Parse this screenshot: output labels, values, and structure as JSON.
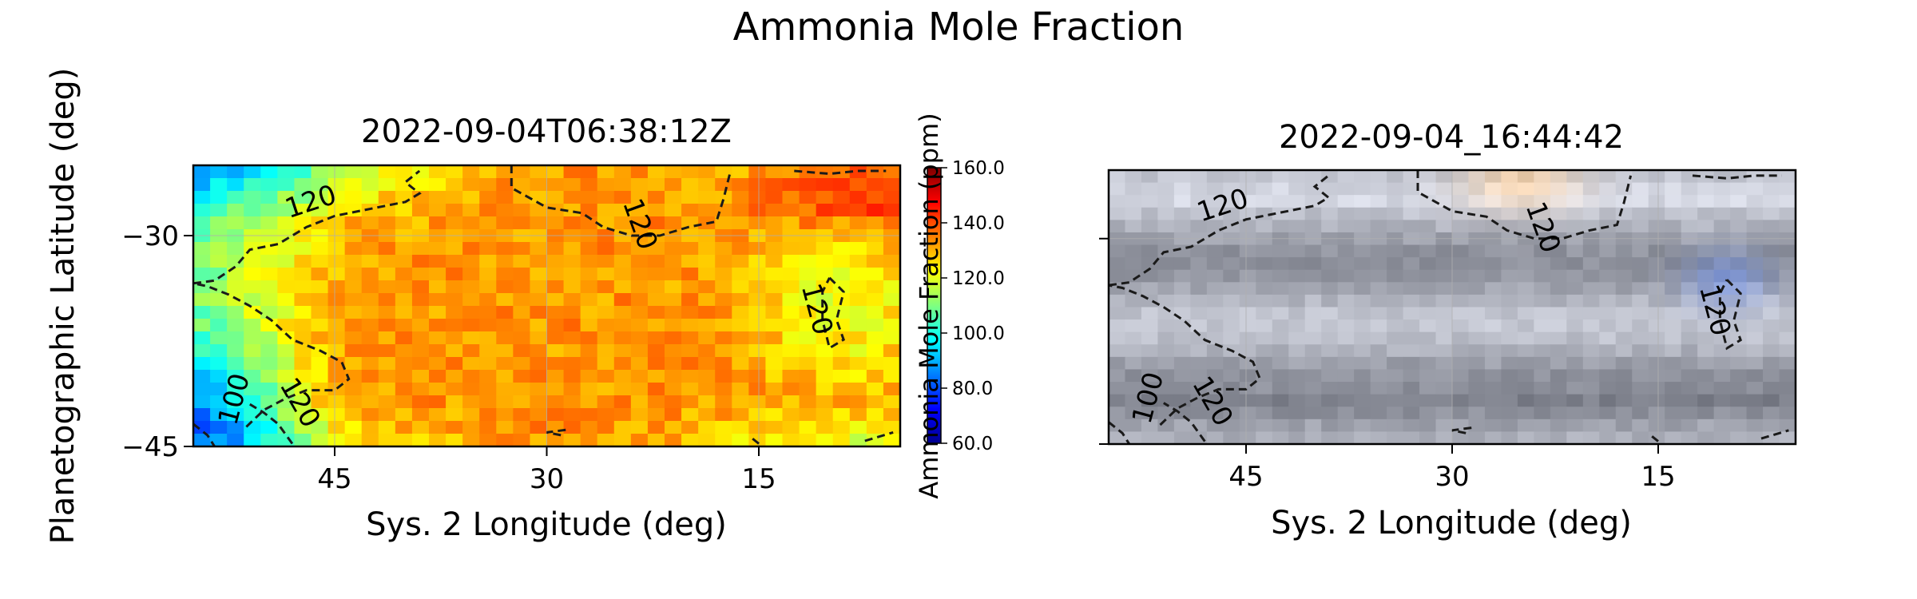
{
  "figure": {
    "suptitle": "Ammonia Mole Fraction"
  },
  "chart_data": [
    {
      "type": "heatmap",
      "title": "2022-09-04T06:38:12Z",
      "xlabel": "Sys. 2 Longitude (deg)",
      "ylabel": "Planetographic Latitude (deg)",
      "xlim": [
        55,
        5
      ],
      "ylim": [
        -45,
        -25
      ],
      "xticks": [
        "45",
        "30",
        "15"
      ],
      "xtick_values": [
        45,
        30,
        15
      ],
      "yticks": [
        "-30",
        "-45"
      ],
      "ytick_values": [
        -30,
        -45
      ],
      "colormap": "jet",
      "grid": true,
      "colorbar": {
        "label": "Ammonia Mole Fraction (ppm)",
        "range": [
          60,
          160
        ],
        "ticks": [
          "60.0",
          "80.0",
          "100.0",
          "120.0",
          "140.0",
          "160.0"
        ],
        "tick_values": [
          60,
          80,
          100,
          120,
          140,
          160
        ]
      },
      "contours": {
        "levels": [
          100,
          120
        ],
        "style": "dashed",
        "labels": [
          "120",
          "120",
          "120",
          "100",
          "120"
        ]
      },
      "approx_field": "~95-105 ppm in lower-left corner, ~110-120 ppm along the upper and left edges, ~125-140 ppm in the central band, up to ~155 ppm in the upper-right corner"
    },
    {
      "type": "heatmap",
      "title": "2022-09-04_16:44:42",
      "xlabel": "Sys. 2 Longitude (deg)",
      "xlim": [
        55,
        5
      ],
      "ylim": [
        -45,
        -25
      ],
      "xticks": [
        "45",
        "30",
        "15"
      ],
      "xtick_values": [
        45,
        30,
        15
      ],
      "grid": true,
      "image": "RGB context image (mostly grey-blue banded cloud texture)",
      "contours": {
        "levels": [
          100,
          120
        ],
        "style": "dashed",
        "labels": [
          "120",
          "120",
          "120",
          "100",
          "120"
        ]
      }
    }
  ]
}
